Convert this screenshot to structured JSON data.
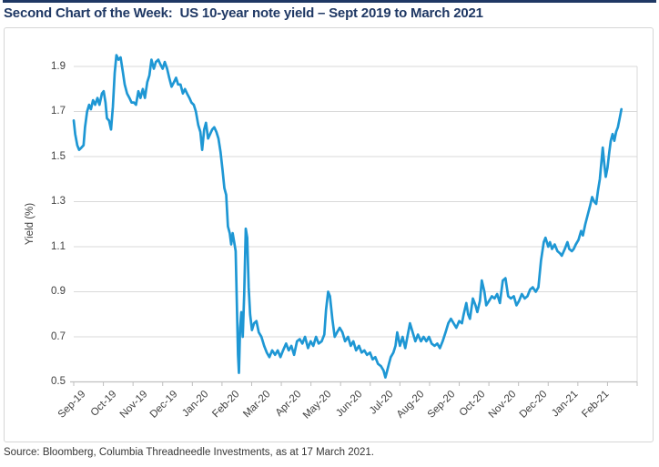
{
  "header": {
    "title": "Second Chart of the Week:  US 10-year note yield – Sept 2019 to March 2021"
  },
  "footer": {
    "source": "Source: Bloomberg, Columbia Threadneedle Investments, as at 17 March 2021."
  },
  "colors": {
    "title_navy": "#1f3864",
    "top_rule_navy": "#1f3864",
    "line_blue": "#1e97d4",
    "gridline_gray": "#d9d9d9",
    "axis_gray": "#bfbfbf",
    "tick_text_gray": "#404040",
    "frame_border_gray": "#d6d6d6"
  },
  "chart_data": {
    "type": "line",
    "title": "US 10-year note yield – Sept 2019 to March 2021",
    "xlabel": "",
    "ylabel": "Yield (%)",
    "ylim": [
      0.5,
      1.9
    ],
    "y_ticks": [
      1.9,
      1.7,
      1.5,
      1.3,
      1.1,
      0.9,
      0.7,
      0.5
    ],
    "x_tick_labels": [
      "Sep-19",
      "Oct-19",
      "Nov-19",
      "Dec-19",
      "Jan-20",
      "Feb-20",
      "Mar-20",
      "Apr-20",
      "May-20",
      "Jun-20",
      "Jul-20",
      "Aug-20",
      "Sep-20",
      "Oct-20",
      "Nov-20",
      "Dec-20",
      "Jan-21",
      "Feb-21"
    ],
    "x_unit": "months since Sep-2019",
    "x_range": [
      0,
      19
    ],
    "grid": true,
    "legend_position": "none",
    "series": [
      {
        "name": "US 10-year note yield (%)",
        "color": "#1e97d4",
        "points": [
          [
            0,
            1.66
          ],
          [
            0.05,
            1.6
          ],
          [
            0.12,
            1.55
          ],
          [
            0.18,
            1.53
          ],
          [
            0.26,
            1.54
          ],
          [
            0.33,
            1.55
          ],
          [
            0.38,
            1.63
          ],
          [
            0.45,
            1.7
          ],
          [
            0.52,
            1.73
          ],
          [
            0.58,
            1.71
          ],
          [
            0.65,
            1.75
          ],
          [
            0.72,
            1.73
          ],
          [
            0.8,
            1.76
          ],
          [
            0.87,
            1.73
          ],
          [
            0.95,
            1.78
          ],
          [
            1.01,
            1.79
          ],
          [
            1.07,
            1.74
          ],
          [
            1.12,
            1.67
          ],
          [
            1.19,
            1.66
          ],
          [
            1.26,
            1.62
          ],
          [
            1.32,
            1.72
          ],
          [
            1.38,
            1.87
          ],
          [
            1.44,
            1.95
          ],
          [
            1.51,
            1.93
          ],
          [
            1.58,
            1.94
          ],
          [
            1.65,
            1.88
          ],
          [
            1.72,
            1.82
          ],
          [
            1.8,
            1.78
          ],
          [
            1.88,
            1.76
          ],
          [
            1.95,
            1.74
          ],
          [
            2.03,
            1.74
          ],
          [
            2.1,
            1.73
          ],
          [
            2.18,
            1.79
          ],
          [
            2.25,
            1.76
          ],
          [
            2.33,
            1.8
          ],
          [
            2.4,
            1.76
          ],
          [
            2.48,
            1.83
          ],
          [
            2.55,
            1.86
          ],
          [
            2.62,
            1.93
          ],
          [
            2.7,
            1.89
          ],
          [
            2.77,
            1.92
          ],
          [
            2.85,
            1.93
          ],
          [
            2.92,
            1.91
          ],
          [
            3.0,
            1.89
          ],
          [
            3.07,
            1.92
          ],
          [
            3.15,
            1.89
          ],
          [
            3.22,
            1.85
          ],
          [
            3.3,
            1.81
          ],
          [
            3.38,
            1.83
          ],
          [
            3.45,
            1.85
          ],
          [
            3.52,
            1.82
          ],
          [
            3.6,
            1.82
          ],
          [
            3.68,
            1.78
          ],
          [
            3.75,
            1.8
          ],
          [
            3.82,
            1.78
          ],
          [
            3.9,
            1.76
          ],
          [
            3.97,
            1.74
          ],
          [
            4.05,
            1.73
          ],
          [
            4.12,
            1.7
          ],
          [
            4.2,
            1.64
          ],
          [
            4.27,
            1.61
          ],
          [
            4.33,
            1.53
          ],
          [
            4.4,
            1.62
          ],
          [
            4.46,
            1.65
          ],
          [
            4.53,
            1.58
          ],
          [
            4.6,
            1.6
          ],
          [
            4.67,
            1.62
          ],
          [
            4.74,
            1.63
          ],
          [
            4.81,
            1.61
          ],
          [
            4.88,
            1.58
          ],
          [
            4.95,
            1.52
          ],
          [
            5.02,
            1.44
          ],
          [
            5.08,
            1.36
          ],
          [
            5.14,
            1.33
          ],
          [
            5.2,
            1.19
          ],
          [
            5.26,
            1.16
          ],
          [
            5.31,
            1.11
          ],
          [
            5.36,
            1.16
          ],
          [
            5.41,
            1.12
          ],
          [
            5.46,
            1.08
          ],
          [
            5.5,
            0.85
          ],
          [
            5.54,
            0.62
          ],
          [
            5.57,
            0.54
          ],
          [
            5.61,
            0.74
          ],
          [
            5.65,
            0.81
          ],
          [
            5.7,
            0.7
          ],
          [
            5.75,
            0.89
          ],
          [
            5.8,
            1.18
          ],
          [
            5.85,
            1.14
          ],
          [
            5.9,
            0.92
          ],
          [
            5.95,
            0.8
          ],
          [
            6.01,
            0.73
          ],
          [
            6.08,
            0.76
          ],
          [
            6.16,
            0.77
          ],
          [
            6.24,
            0.72
          ],
          [
            6.33,
            0.7
          ],
          [
            6.42,
            0.66
          ],
          [
            6.51,
            0.63
          ],
          [
            6.6,
            0.61
          ],
          [
            6.69,
            0.64
          ],
          [
            6.79,
            0.62
          ],
          [
            6.88,
            0.64
          ],
          [
            6.97,
            0.61
          ],
          [
            7.06,
            0.64
          ],
          [
            7.16,
            0.67
          ],
          [
            7.25,
            0.64
          ],
          [
            7.34,
            0.66
          ],
          [
            7.43,
            0.62
          ],
          [
            7.53,
            0.68
          ],
          [
            7.62,
            0.69
          ],
          [
            7.71,
            0.67
          ],
          [
            7.8,
            0.7
          ],
          [
            7.9,
            0.65
          ],
          [
            7.99,
            0.68
          ],
          [
            8.08,
            0.66
          ],
          [
            8.17,
            0.7
          ],
          [
            8.26,
            0.67
          ],
          [
            8.36,
            0.68
          ],
          [
            8.45,
            0.71
          ],
          [
            8.51,
            0.82
          ],
          [
            8.58,
            0.9
          ],
          [
            8.64,
            0.88
          ],
          [
            8.72,
            0.78
          ],
          [
            8.8,
            0.7
          ],
          [
            8.88,
            0.72
          ],
          [
            8.97,
            0.74
          ],
          [
            9.06,
            0.72
          ],
          [
            9.15,
            0.68
          ],
          [
            9.25,
            0.7
          ],
          [
            9.34,
            0.66
          ],
          [
            9.43,
            0.68
          ],
          [
            9.52,
            0.64
          ],
          [
            9.62,
            0.66
          ],
          [
            9.71,
            0.63
          ],
          [
            9.8,
            0.64
          ],
          [
            9.89,
            0.62
          ],
          [
            9.99,
            0.63
          ],
          [
            10.08,
            0.6
          ],
          [
            10.17,
            0.61
          ],
          [
            10.26,
            0.58
          ],
          [
            10.36,
            0.57
          ],
          [
            10.45,
            0.55
          ],
          [
            10.51,
            0.52
          ],
          [
            10.57,
            0.55
          ],
          [
            10.63,
            0.58
          ],
          [
            10.69,
            0.61
          ],
          [
            10.78,
            0.63
          ],
          [
            10.85,
            0.66
          ],
          [
            10.91,
            0.72
          ],
          [
            11.0,
            0.66
          ],
          [
            11.09,
            0.7
          ],
          [
            11.18,
            0.65
          ],
          [
            11.28,
            0.72
          ],
          [
            11.34,
            0.76
          ],
          [
            11.43,
            0.72
          ],
          [
            11.52,
            0.68
          ],
          [
            11.61,
            0.71
          ],
          [
            11.71,
            0.68
          ],
          [
            11.8,
            0.7
          ],
          [
            11.89,
            0.68
          ],
          [
            11.98,
            0.7
          ],
          [
            12.07,
            0.67
          ],
          [
            12.17,
            0.66
          ],
          [
            12.26,
            0.67
          ],
          [
            12.35,
            0.65
          ],
          [
            12.44,
            0.68
          ],
          [
            12.54,
            0.72
          ],
          [
            12.63,
            0.76
          ],
          [
            12.72,
            0.78
          ],
          [
            12.81,
            0.76
          ],
          [
            12.9,
            0.74
          ],
          [
            13.0,
            0.77
          ],
          [
            13.09,
            0.76
          ],
          [
            13.15,
            0.8
          ],
          [
            13.24,
            0.85
          ],
          [
            13.3,
            0.8
          ],
          [
            13.36,
            0.78
          ],
          [
            13.46,
            0.87
          ],
          [
            13.55,
            0.84
          ],
          [
            13.61,
            0.81
          ],
          [
            13.7,
            0.86
          ],
          [
            13.76,
            0.95
          ],
          [
            13.85,
            0.9
          ],
          [
            13.91,
            0.84
          ],
          [
            14.01,
            0.86
          ],
          [
            14.1,
            0.88
          ],
          [
            14.19,
            0.87
          ],
          [
            14.28,
            0.89
          ],
          [
            14.37,
            0.85
          ],
          [
            14.47,
            0.95
          ],
          [
            14.56,
            0.96
          ],
          [
            14.65,
            0.88
          ],
          [
            14.74,
            0.87
          ],
          [
            14.84,
            0.88
          ],
          [
            14.93,
            0.84
          ],
          [
            15.02,
            0.86
          ],
          [
            15.11,
            0.89
          ],
          [
            15.21,
            0.87
          ],
          [
            15.3,
            0.88
          ],
          [
            15.39,
            0.91
          ],
          [
            15.48,
            0.92
          ],
          [
            15.58,
            0.9
          ],
          [
            15.67,
            0.92
          ],
          [
            15.76,
            1.04
          ],
          [
            15.85,
            1.12
          ],
          [
            15.91,
            1.14
          ],
          [
            16.0,
            1.1
          ],
          [
            16.06,
            1.12
          ],
          [
            16.13,
            1.09
          ],
          [
            16.22,
            1.11
          ],
          [
            16.31,
            1.08
          ],
          [
            16.4,
            1.07
          ],
          [
            16.46,
            1.06
          ],
          [
            16.56,
            1.09
          ],
          [
            16.65,
            1.12
          ],
          [
            16.71,
            1.09
          ],
          [
            16.8,
            1.08
          ],
          [
            16.86,
            1.09
          ],
          [
            16.93,
            1.11
          ],
          [
            17.02,
            1.13
          ],
          [
            17.11,
            1.17
          ],
          [
            17.17,
            1.15
          ],
          [
            17.25,
            1.2
          ],
          [
            17.33,
            1.24
          ],
          [
            17.41,
            1.28
          ],
          [
            17.48,
            1.32
          ],
          [
            17.55,
            1.3
          ],
          [
            17.62,
            1.29
          ],
          [
            17.68,
            1.35
          ],
          [
            17.74,
            1.4
          ],
          [
            17.79,
            1.47
          ],
          [
            17.84,
            1.54
          ],
          [
            17.89,
            1.47
          ],
          [
            17.94,
            1.41
          ],
          [
            18.0,
            1.45
          ],
          [
            18.06,
            1.52
          ],
          [
            18.11,
            1.57
          ],
          [
            18.17,
            1.6
          ],
          [
            18.23,
            1.57
          ],
          [
            18.29,
            1.61
          ],
          [
            18.35,
            1.63
          ],
          [
            18.41,
            1.67
          ],
          [
            18.47,
            1.71
          ]
        ]
      }
    ]
  }
}
